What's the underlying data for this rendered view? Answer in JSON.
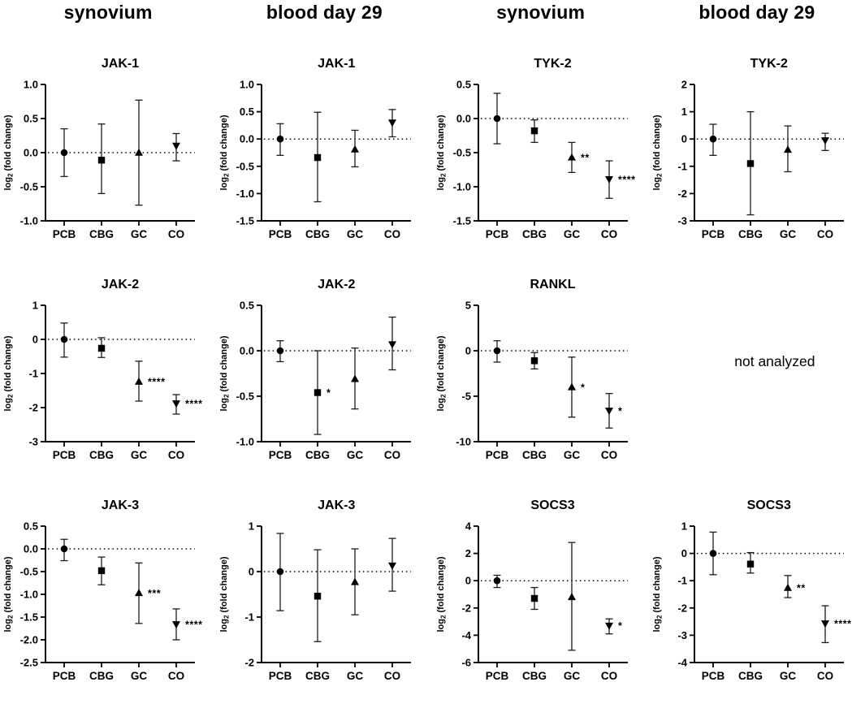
{
  "page": {
    "background": "#ffffff",
    "foreground": "#000000"
  },
  "column_headers": [
    "synovium",
    "blood day 29",
    "synovium",
    "blood day 29"
  ],
  "not_analyzed_label": "not analyzed",
  "chart_data": [
    {
      "type": "scatter",
      "title": "JAK-1",
      "ylabel": "log2 (fold change)",
      "xlabel": "",
      "categories": [
        "PCB",
        "CBG",
        "GC",
        "CO"
      ],
      "ylim": [
        -1.0,
        1.0
      ],
      "yticks": [
        1.0,
        0.5,
        0.0,
        -0.5,
        -1.0
      ],
      "ytick_labels": [
        "1.0",
        "0.5",
        "0.0",
        "-0.5",
        "-1.0"
      ],
      "zero_line": "dotted",
      "grid": "off",
      "points": [
        {
          "category": "PCB",
          "marker": "circle",
          "value": 0.0,
          "error_low": -0.35,
          "error_high": 0.35,
          "significance": ""
        },
        {
          "category": "CBG",
          "marker": "square",
          "value": -0.11,
          "error_low": -0.6,
          "error_high": 0.42,
          "significance": ""
        },
        {
          "category": "GC",
          "marker": "triangle-up",
          "value": 0.0,
          "error_low": -0.77,
          "error_high": 0.77,
          "significance": ""
        },
        {
          "category": "CO",
          "marker": "triangle-down",
          "value": 0.1,
          "error_low": -0.12,
          "error_high": 0.28,
          "significance": ""
        }
      ]
    },
    {
      "type": "scatter",
      "title": "JAK-1",
      "ylabel": "log2 (fold change)",
      "xlabel": "",
      "categories": [
        "PCB",
        "CBG",
        "GC",
        "CO"
      ],
      "ylim": [
        -1.5,
        1.0
      ],
      "yticks": [
        1.0,
        0.5,
        0.0,
        -0.5,
        -1.0,
        -1.5
      ],
      "ytick_labels": [
        "1.0",
        "0.5",
        "0.0",
        "-0.5",
        "-1.0",
        "-1.5"
      ],
      "zero_line": "dotted",
      "grid": "off",
      "points": [
        {
          "category": "PCB",
          "marker": "circle",
          "value": 0.0,
          "error_low": -0.3,
          "error_high": 0.28,
          "significance": ""
        },
        {
          "category": "CBG",
          "marker": "square",
          "value": -0.34,
          "error_low": -1.15,
          "error_high": 0.49,
          "significance": ""
        },
        {
          "category": "GC",
          "marker": "triangle-up",
          "value": -0.19,
          "error_low": -0.51,
          "error_high": 0.16,
          "significance": ""
        },
        {
          "category": "CO",
          "marker": "triangle-down",
          "value": 0.3,
          "error_low": 0.04,
          "error_high": 0.54,
          "significance": ""
        }
      ]
    },
    {
      "type": "scatter",
      "title": "TYK-2",
      "ylabel": "log2 (fold change)",
      "xlabel": "",
      "categories": [
        "PCB",
        "CBG",
        "GC",
        "CO"
      ],
      "ylim": [
        -1.5,
        0.5
      ],
      "yticks": [
        0.5,
        0.0,
        -0.5,
        -1.0,
        -1.5
      ],
      "ytick_labels": [
        "0.5",
        "0.0",
        "-0.5",
        "-1.0",
        "-1.5"
      ],
      "zero_line": "dotted",
      "grid": "off",
      "points": [
        {
          "category": "PCB",
          "marker": "circle",
          "value": 0.0,
          "error_low": -0.37,
          "error_high": 0.37,
          "significance": ""
        },
        {
          "category": "CBG",
          "marker": "square",
          "value": -0.18,
          "error_low": -0.35,
          "error_high": -0.02,
          "significance": ""
        },
        {
          "category": "GC",
          "marker": "triangle-up",
          "value": -0.57,
          "error_low": -0.79,
          "error_high": -0.35,
          "significance": "**"
        },
        {
          "category": "CO",
          "marker": "triangle-down",
          "value": -0.89,
          "error_low": -1.17,
          "error_high": -0.62,
          "significance": "****"
        }
      ]
    },
    {
      "type": "scatter",
      "title": "TYK-2",
      "ylabel": "log2 (fold change)",
      "xlabel": "",
      "categories": [
        "PCB",
        "CBG",
        "GC",
        "CO"
      ],
      "ylim": [
        -3,
        2
      ],
      "yticks": [
        2,
        1,
        0,
        -1,
        -2,
        -3
      ],
      "ytick_labels": [
        "2",
        "1",
        "0",
        "-1",
        "-2",
        "-3"
      ],
      "zero_line": "dotted",
      "grid": "off",
      "points": [
        {
          "category": "PCB",
          "marker": "circle",
          "value": 0.0,
          "error_low": -0.6,
          "error_high": 0.54,
          "significance": ""
        },
        {
          "category": "CBG",
          "marker": "square",
          "value": -0.9,
          "error_low": -2.78,
          "error_high": 1.0,
          "significance": ""
        },
        {
          "category": "GC",
          "marker": "triangle-up",
          "value": -0.39,
          "error_low": -1.2,
          "error_high": 0.48,
          "significance": ""
        },
        {
          "category": "CO",
          "marker": "triangle-down",
          "value": -0.05,
          "error_low": -0.42,
          "error_high": 0.21,
          "significance": ""
        }
      ]
    },
    {
      "type": "scatter",
      "title": "JAK-2",
      "ylabel": "log2 (fold change)",
      "xlabel": "",
      "categories": [
        "PCB",
        "CBG",
        "GC",
        "CO"
      ],
      "ylim": [
        -3,
        1
      ],
      "yticks": [
        1,
        0,
        -1,
        -2,
        -3
      ],
      "ytick_labels": [
        "1",
        "0",
        "-1",
        "-2",
        "-3"
      ],
      "zero_line": "dotted",
      "grid": "off",
      "points": [
        {
          "category": "PCB",
          "marker": "circle",
          "value": 0.0,
          "error_low": -0.52,
          "error_high": 0.48,
          "significance": ""
        },
        {
          "category": "CBG",
          "marker": "square",
          "value": -0.26,
          "error_low": -0.53,
          "error_high": 0.05,
          "significance": ""
        },
        {
          "category": "GC",
          "marker": "triangle-up",
          "value": -1.24,
          "error_low": -1.81,
          "error_high": -0.64,
          "significance": "****"
        },
        {
          "category": "CO",
          "marker": "triangle-down",
          "value": -1.88,
          "error_low": -2.19,
          "error_high": -1.62,
          "significance": "****"
        }
      ]
    },
    {
      "type": "scatter",
      "title": "JAK-2",
      "ylabel": "log2 (fold change)",
      "xlabel": "",
      "categories": [
        "PCB",
        "CBG",
        "GC",
        "CO"
      ],
      "ylim": [
        -1.0,
        0.5
      ],
      "yticks": [
        0.5,
        0.0,
        -0.5,
        -1.0
      ],
      "ytick_labels": [
        "0.5",
        "0.0",
        "-0.5",
        "-1.0"
      ],
      "zero_line": "dotted",
      "grid": "off",
      "points": [
        {
          "category": "PCB",
          "marker": "circle",
          "value": 0.0,
          "error_low": -0.12,
          "error_high": 0.11,
          "significance": ""
        },
        {
          "category": "CBG",
          "marker": "square",
          "value": -0.46,
          "error_low": -0.92,
          "error_high": 0.0,
          "significance": "*"
        },
        {
          "category": "GC",
          "marker": "triangle-up",
          "value": -0.31,
          "error_low": -0.64,
          "error_high": 0.03,
          "significance": ""
        },
        {
          "category": "CO",
          "marker": "triangle-down",
          "value": 0.07,
          "error_low": -0.21,
          "error_high": 0.37,
          "significance": ""
        }
      ]
    },
    {
      "type": "scatter",
      "title": "RANKL",
      "ylabel": "log2 (fold change)",
      "xlabel": "",
      "categories": [
        "PCB",
        "CBG",
        "GC",
        "CO"
      ],
      "ylim": [
        -10,
        5
      ],
      "yticks": [
        5,
        0,
        -5,
        -10
      ],
      "ytick_labels": [
        "5",
        "0",
        "-5",
        "-10"
      ],
      "zero_line": "dotted",
      "grid": "off",
      "points": [
        {
          "category": "PCB",
          "marker": "circle",
          "value": 0.0,
          "error_low": -1.25,
          "error_high": 1.1,
          "significance": ""
        },
        {
          "category": "CBG",
          "marker": "square",
          "value": -1.1,
          "error_low": -2.0,
          "error_high": -0.2,
          "significance": ""
        },
        {
          "category": "GC",
          "marker": "triangle-up",
          "value": -4.0,
          "error_low": -7.3,
          "error_high": -0.7,
          "significance": "*"
        },
        {
          "category": "CO",
          "marker": "triangle-down",
          "value": -6.6,
          "error_low": -8.5,
          "error_high": -4.7,
          "significance": "*"
        }
      ]
    },
    {
      "type": "scatter",
      "title": "JAK-3",
      "ylabel": "log2 (fold change)",
      "xlabel": "",
      "categories": [
        "PCB",
        "CBG",
        "GC",
        "CO"
      ],
      "ylim": [
        -2.5,
        0.5
      ],
      "yticks": [
        0.5,
        0.0,
        -0.5,
        -1.0,
        -1.5,
        -2.0,
        -2.5
      ],
      "ytick_labels": [
        "0.5",
        "0.0",
        "-0.5",
        "-1.0",
        "-1.5",
        "-2.0",
        "-2.5"
      ],
      "zero_line": "dotted",
      "grid": "off",
      "points": [
        {
          "category": "PCB",
          "marker": "circle",
          "value": 0.0,
          "error_low": -0.26,
          "error_high": 0.21,
          "significance": ""
        },
        {
          "category": "CBG",
          "marker": "square",
          "value": -0.48,
          "error_low": -0.79,
          "error_high": -0.18,
          "significance": ""
        },
        {
          "category": "GC",
          "marker": "triangle-up",
          "value": -0.97,
          "error_low": -1.64,
          "error_high": -0.31,
          "significance": "***"
        },
        {
          "category": "CO",
          "marker": "triangle-down",
          "value": -1.66,
          "error_low": -2.0,
          "error_high": -1.32,
          "significance": "****"
        }
      ]
    },
    {
      "type": "scatter",
      "title": "JAK-3",
      "ylabel": "log2 (fold change)",
      "xlabel": "",
      "categories": [
        "PCB",
        "CBG",
        "GC",
        "CO"
      ],
      "ylim": [
        -2,
        1
      ],
      "yticks": [
        1,
        0,
        -1,
        -2
      ],
      "ytick_labels": [
        "1",
        "0",
        "-1",
        "-2"
      ],
      "zero_line": "dotted",
      "grid": "off",
      "points": [
        {
          "category": "PCB",
          "marker": "circle",
          "value": 0.0,
          "error_low": -0.86,
          "error_high": 0.84,
          "significance": ""
        },
        {
          "category": "CBG",
          "marker": "square",
          "value": -0.54,
          "error_low": -1.54,
          "error_high": 0.48,
          "significance": ""
        },
        {
          "category": "GC",
          "marker": "triangle-up",
          "value": -0.23,
          "error_low": -0.95,
          "error_high": 0.5,
          "significance": ""
        },
        {
          "category": "CO",
          "marker": "triangle-down",
          "value": 0.13,
          "error_low": -0.43,
          "error_high": 0.73,
          "significance": ""
        }
      ]
    },
    {
      "type": "scatter",
      "title": "SOCS3",
      "ylabel": "log2 (fold change)",
      "xlabel": "",
      "categories": [
        "PCB",
        "CBG",
        "GC",
        "CO"
      ],
      "ylim": [
        -6,
        4
      ],
      "yticks": [
        4,
        2,
        0,
        -2,
        -4,
        -6
      ],
      "ytick_labels": [
        "4",
        "2",
        "0",
        "-2",
        "-4",
        "-6"
      ],
      "zero_line": "dotted",
      "grid": "off",
      "points": [
        {
          "category": "PCB",
          "marker": "circle",
          "value": 0.0,
          "error_low": -0.5,
          "error_high": 0.4,
          "significance": ""
        },
        {
          "category": "CBG",
          "marker": "square",
          "value": -1.3,
          "error_low": -2.1,
          "error_high": -0.5,
          "significance": ""
        },
        {
          "category": "GC",
          "marker": "triangle-up",
          "value": -1.2,
          "error_low": -5.1,
          "error_high": 2.8,
          "significance": ""
        },
        {
          "category": "CO",
          "marker": "triangle-down",
          "value": -3.3,
          "error_low": -3.9,
          "error_high": -2.8,
          "significance": "*"
        }
      ]
    },
    {
      "type": "scatter",
      "title": "SOCS3",
      "ylabel": "log2 (fold change)",
      "xlabel": "",
      "categories": [
        "PCB",
        "CBG",
        "GC",
        "CO"
      ],
      "ylim": [
        -4,
        1
      ],
      "yticks": [
        1,
        0,
        -1,
        -2,
        -3,
        -4
      ],
      "ytick_labels": [
        "1",
        "0",
        "-1",
        "-2",
        "-3",
        "-4"
      ],
      "zero_line": "dotted",
      "grid": "off",
      "points": [
        {
          "category": "PCB",
          "marker": "circle",
          "value": 0.0,
          "error_low": -0.78,
          "error_high": 0.78,
          "significance": ""
        },
        {
          "category": "CBG",
          "marker": "square",
          "value": -0.39,
          "error_low": -0.72,
          "error_high": 0.03,
          "significance": ""
        },
        {
          "category": "GC",
          "marker": "triangle-up",
          "value": -1.26,
          "error_low": -1.62,
          "error_high": -0.81,
          "significance": "**"
        },
        {
          "category": "CO",
          "marker": "triangle-down",
          "value": -2.57,
          "error_low": -3.27,
          "error_high": -1.92,
          "significance": "****"
        }
      ]
    }
  ]
}
